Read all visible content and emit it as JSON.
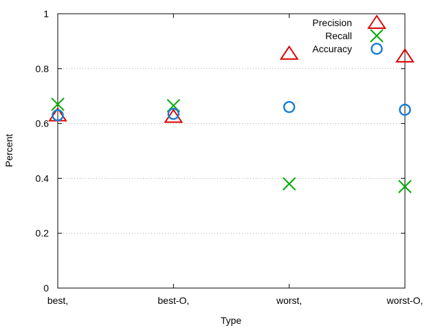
{
  "chart_data": {
    "type": "scatter",
    "title": "",
    "xlabel": "Type",
    "ylabel": "Percent",
    "categories": [
      "best,",
      "best-O,",
      "worst,",
      "worst-O,"
    ],
    "ylim": [
      0,
      1
    ],
    "yticks": [
      "0",
      "0.2",
      "0.4",
      "0.6",
      "0.8",
      "1"
    ],
    "grid": "horizontal dotted",
    "legend_position": "top-right",
    "series": [
      {
        "name": "Precision",
        "marker": "triangle",
        "color": "#dd0000",
        "values": [
          0.63,
          0.625,
          0.855,
          0.845
        ]
      },
      {
        "name": "Recall",
        "marker": "x",
        "color": "#00aa00",
        "values": [
          0.67,
          0.665,
          0.38,
          0.37
        ]
      },
      {
        "name": "Accuracy",
        "marker": "circle",
        "color": "#1a7fd6",
        "values": [
          0.63,
          0.635,
          0.66,
          0.65
        ]
      }
    ]
  }
}
